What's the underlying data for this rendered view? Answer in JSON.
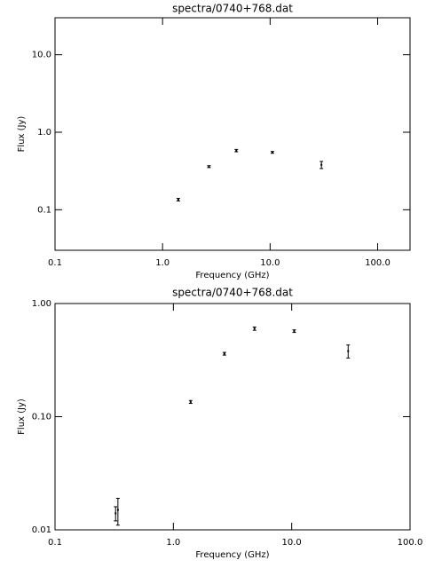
{
  "chart_data": [
    {
      "type": "scatter",
      "title": "spectra/0740+768.dat",
      "x_label": "Frequency (GHz)",
      "y_label": "Flux (Jy)",
      "log_x": true,
      "log_y": true,
      "xlim": [
        0.1,
        200
      ],
      "xticks": [
        0.1,
        {
          "value": 1,
          "label": "1.0"
        },
        {
          "value": 10,
          "label": "10.0"
        },
        {
          "value": 100,
          "label": "100.0"
        }
      ],
      "ylim": [
        0.03,
        30
      ],
      "yticks": [
        0.1,
        {
          "value": 1,
          "label": "1.0"
        },
        {
          "value": 10,
          "label": "10.0"
        }
      ],
      "series": [
        {
          "color": "#000000",
          "x": [
            1.4,
            2.7,
            4.85,
            10.5,
            30
          ],
          "values": [
            0.135,
            0.36,
            0.58,
            0.55,
            0.38
          ],
          "errors": [
            0.005,
            0.01,
            0.02,
            0.015,
            0.04
          ]
        }
      ]
    },
    {
      "type": "scatter",
      "title": "spectra/0740+768.dat",
      "x_label": "Frequency (GHz)",
      "y_label": "Flux (Jy)",
      "log_x": true,
      "log_y": true,
      "xlim": [
        0.1,
        100
      ],
      "xticks": [
        0.1,
        {
          "value": 1,
          "label": "1.0"
        },
        {
          "value": 10,
          "label": "10.0"
        },
        {
          "value": 100,
          "label": "100.0"
        }
      ],
      "ylim": [
        0.01,
        1
      ],
      "yticks": [
        0.01,
        {
          "value": 0.1,
          "label": "0.10"
        },
        {
          "value": 1,
          "label": "1.00"
        }
      ],
      "series": [
        {
          "color": "#000000",
          "x": [
            0.325,
            0.34,
            1.4,
            2.7,
            4.85,
            10.5,
            30
          ],
          "values": [
            0.014,
            0.015,
            0.135,
            0.36,
            0.6,
            0.57,
            0.38
          ],
          "errors": [
            0.002,
            0.004,
            0.004,
            0.01,
            0.02,
            0.015,
            0.05
          ]
        }
      ]
    }
  ]
}
